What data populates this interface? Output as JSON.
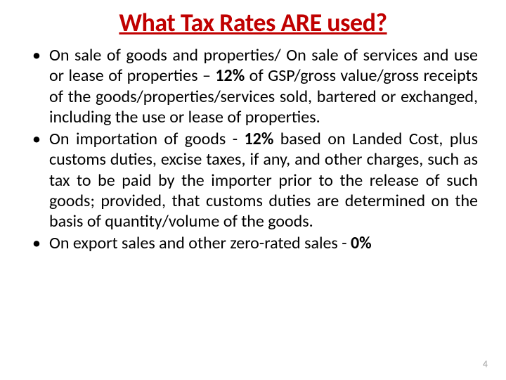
{
  "title": {
    "text": "What Tax Rates ARE used?",
    "color": "#c00000",
    "fontsize": 36
  },
  "body": {
    "fontsize": 24,
    "color": "#000000",
    "line_height": 1.22,
    "bullets": [
      {
        "pre": "On sale of goods and properties/ On sale of services and use or lease of properties – ",
        "bold": "12%",
        "post": " of GSP/gross value/gross receipts of the goods/properties/services sold, bartered or exchanged, including the use or lease of properties."
      },
      {
        "pre": "On importation of goods - ",
        "bold": "12%",
        "post": " based on Landed Cost, plus customs duties, excise taxes, if any, and other charges, such as tax to be paid by the importer prior to the release of such goods; provided, that customs duties are determined on the basis of quantity/volume of the goods."
      },
      {
        "pre": " On export sales and other zero-rated sales - ",
        "bold": "0%",
        "post": ""
      }
    ]
  },
  "pagenum": {
    "text": "4",
    "color": "#a6a6a6",
    "fontsize": 14
  }
}
